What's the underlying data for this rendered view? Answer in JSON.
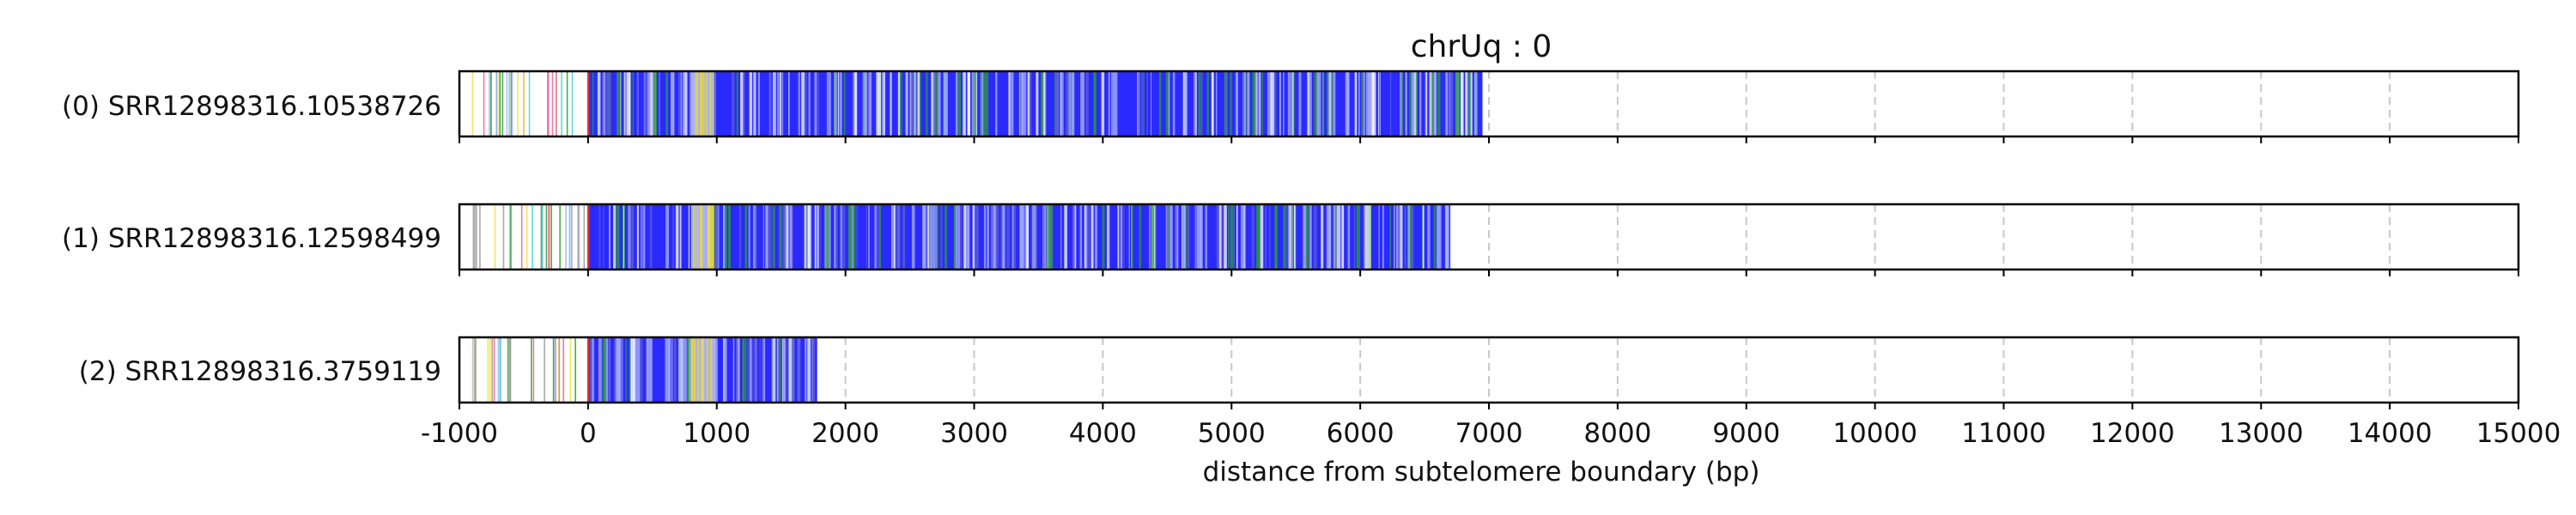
{
  "chart_data": {
    "type": "read-track",
    "title": "chrUq : 0",
    "xlabel": "distance from subtelomere boundary (bp)",
    "xlim": [
      -1000,
      15000
    ],
    "xticks": [
      -1000,
      0,
      1000,
      2000,
      3000,
      4000,
      5000,
      6000,
      7000,
      8000,
      9000,
      10000,
      11000,
      12000,
      13000,
      14000,
      15000
    ],
    "grid": true,
    "reads": [
      {
        "label": "(0) SRR12898316.10538726",
        "start": -1000,
        "end": 6950
      },
      {
        "label": "(1) SRR12898316.12598499",
        "start": -1000,
        "end": 6700
      },
      {
        "label": "(2) SRR12898316.3759119",
        "start": -1000,
        "end": 1780
      }
    ],
    "colors": {
      "telomere_repeat": "#2a2aff",
      "variant_light": "#a8b0ff",
      "variant_green": "#2aa02a",
      "variant_yellow": "#f0e040",
      "variant_red": "#dd3333",
      "variant_pink": "#f06090",
      "variant_cyan": "#40d8d8",
      "frame": "#000000",
      "grid": "#c8c8c8"
    }
  }
}
